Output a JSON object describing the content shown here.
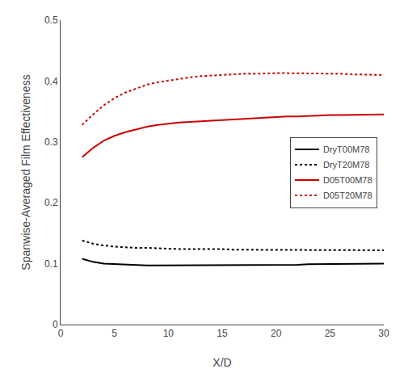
{
  "chart_data": {
    "type": "line",
    "xlabel": "X/D",
    "ylabel": "Spanwise-Averaged Film Effectiveness",
    "xlim": [
      0,
      30
    ],
    "ylim": [
      0,
      0.5
    ],
    "xticks": [
      0,
      5,
      10,
      15,
      20,
      25,
      30
    ],
    "yticks": [
      0,
      0.1,
      0.2,
      0.3,
      0.4,
      0.5
    ],
    "grid": false,
    "legend": "right",
    "x": [
      2,
      3,
      4,
      5,
      6,
      7,
      8,
      9,
      10,
      11,
      12,
      13,
      14,
      15,
      16,
      17,
      18,
      19,
      20,
      21,
      22,
      23,
      24,
      25,
      26,
      27,
      28,
      29,
      30
    ],
    "series": [
      {
        "name": "DryT00M78",
        "color": "#000000",
        "line_style": "solid",
        "values": [
          0.108,
          0.103,
          0.1,
          0.099,
          0.098,
          0.098,
          0.097,
          0.097,
          0.097,
          0.097,
          0.097,
          0.097,
          0.097,
          0.097,
          0.097,
          0.097,
          0.097,
          0.098,
          0.098,
          0.098,
          0.098,
          0.099,
          0.099,
          0.099,
          0.099,
          0.1,
          0.1,
          0.1,
          0.1
        ]
      },
      {
        "name": "DryT20M78",
        "color": "#000000",
        "line_style": "dotted",
        "values": [
          0.138,
          0.133,
          0.13,
          0.128,
          0.127,
          0.126,
          0.126,
          0.125,
          0.125,
          0.124,
          0.124,
          0.124,
          0.124,
          0.124,
          0.123,
          0.123,
          0.123,
          0.123,
          0.123,
          0.122,
          0.122,
          0.122,
          0.122,
          0.122,
          0.122,
          0.122,
          0.122,
          0.122,
          0.122
        ]
      },
      {
        "name": "D05T00M78",
        "color": "#cc0000",
        "line_style": "solid",
        "values": [
          0.275,
          0.29,
          0.302,
          0.31,
          0.316,
          0.321,
          0.325,
          0.328,
          0.33,
          0.332,
          0.333,
          0.334,
          0.335,
          0.336,
          0.337,
          0.338,
          0.339,
          0.34,
          0.341,
          0.342,
          0.342,
          0.343,
          0.343,
          0.344,
          0.344,
          0.344,
          0.344,
          0.345,
          0.345
        ]
      },
      {
        "name": "D05T20M78",
        "color": "#cc0000",
        "line_style": "dotted",
        "values": [
          0.328,
          0.345,
          0.36,
          0.372,
          0.381,
          0.388,
          0.394,
          0.398,
          0.401,
          0.404,
          0.406,
          0.408,
          0.409,
          0.41,
          0.411,
          0.412,
          0.412,
          0.413,
          0.413,
          0.413,
          0.413,
          0.413,
          0.412,
          0.412,
          0.412,
          0.411,
          0.411,
          0.41,
          0.41
        ]
      }
    ]
  }
}
